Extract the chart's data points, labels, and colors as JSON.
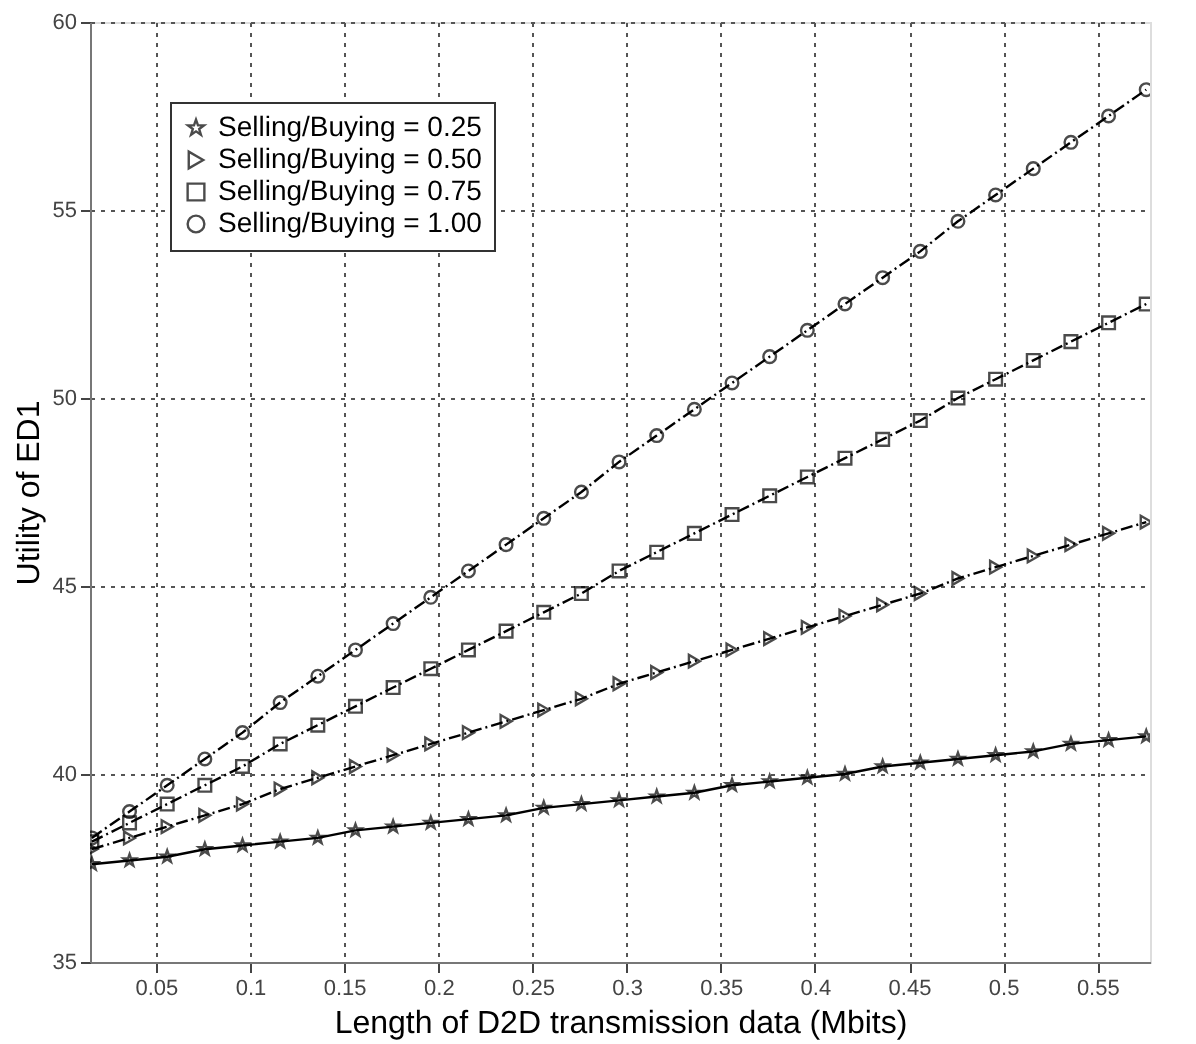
{
  "chart_data": {
    "type": "line",
    "xlabel": "Length of D2D transmission data (Mbits)",
    "ylabel": "Utility of ED1",
    "x": [
      0.016,
      0.036,
      0.056,
      0.076,
      0.096,
      0.116,
      0.136,
      0.156,
      0.176,
      0.196,
      0.216,
      0.236,
      0.256,
      0.276,
      0.296,
      0.316,
      0.336,
      0.356,
      0.376,
      0.396,
      0.416,
      0.436,
      0.456,
      0.476,
      0.496,
      0.516,
      0.536,
      0.556,
      0.576
    ],
    "series": [
      {
        "name": "Selling/Buying = 0.25",
        "color": "#000000",
        "marker": "star",
        "line_style": "solid",
        "values": [
          37.6,
          37.7,
          37.8,
          38.0,
          38.1,
          38.2,
          38.3,
          38.5,
          38.6,
          38.7,
          38.8,
          38.9,
          39.1,
          39.2,
          39.3,
          39.4,
          39.5,
          39.7,
          39.8,
          39.9,
          40.0,
          40.2,
          40.3,
          40.4,
          40.5,
          40.6,
          40.8,
          40.9,
          41.0
        ]
      },
      {
        "name": "Selling/Buying = 0.50",
        "color": "#000000",
        "marker": "triangle",
        "line_style": "dashed",
        "values": [
          38.0,
          38.3,
          38.6,
          38.9,
          39.2,
          39.6,
          39.9,
          40.2,
          40.5,
          40.8,
          41.1,
          41.4,
          41.7,
          42.0,
          42.4,
          42.7,
          43.0,
          43.3,
          43.6,
          43.9,
          44.2,
          44.5,
          44.8,
          45.2,
          45.5,
          45.8,
          46.1,
          46.4,
          46.7
        ]
      },
      {
        "name": "Selling/Buying = 0.75",
        "color": "#000000",
        "marker": "square",
        "line_style": "dashed",
        "values": [
          38.2,
          38.7,
          39.2,
          39.7,
          40.2,
          40.8,
          41.3,
          41.8,
          42.3,
          42.8,
          43.3,
          43.8,
          44.3,
          44.8,
          45.4,
          45.9,
          46.4,
          46.9,
          47.4,
          47.9,
          48.4,
          48.9,
          49.4,
          50.0,
          50.5,
          51.0,
          51.5,
          52.0,
          52.5
        ]
      },
      {
        "name": "Selling/Buying = 1.00",
        "color": "#000000",
        "marker": "circle",
        "line_style": "dashed",
        "values": [
          38.3,
          39.0,
          39.7,
          40.4,
          41.1,
          41.9,
          42.6,
          43.3,
          44.0,
          44.7,
          45.4,
          46.1,
          46.8,
          47.5,
          48.3,
          49.0,
          49.7,
          50.4,
          51.1,
          51.8,
          52.5,
          53.2,
          53.9,
          54.7,
          55.4,
          56.1,
          56.8,
          57.5,
          58.2
        ]
      }
    ],
    "xlim": [
      0.015,
      0.578
    ],
    "xticks": [
      0.05,
      0.1,
      0.15,
      0.2,
      0.25,
      0.3,
      0.35,
      0.4,
      0.45,
      0.5,
      0.55
    ],
    "ylim": [
      35,
      60
    ],
    "yticks": [
      35,
      40,
      45,
      50,
      55,
      60
    ],
    "grid": true,
    "legend": "top left"
  }
}
